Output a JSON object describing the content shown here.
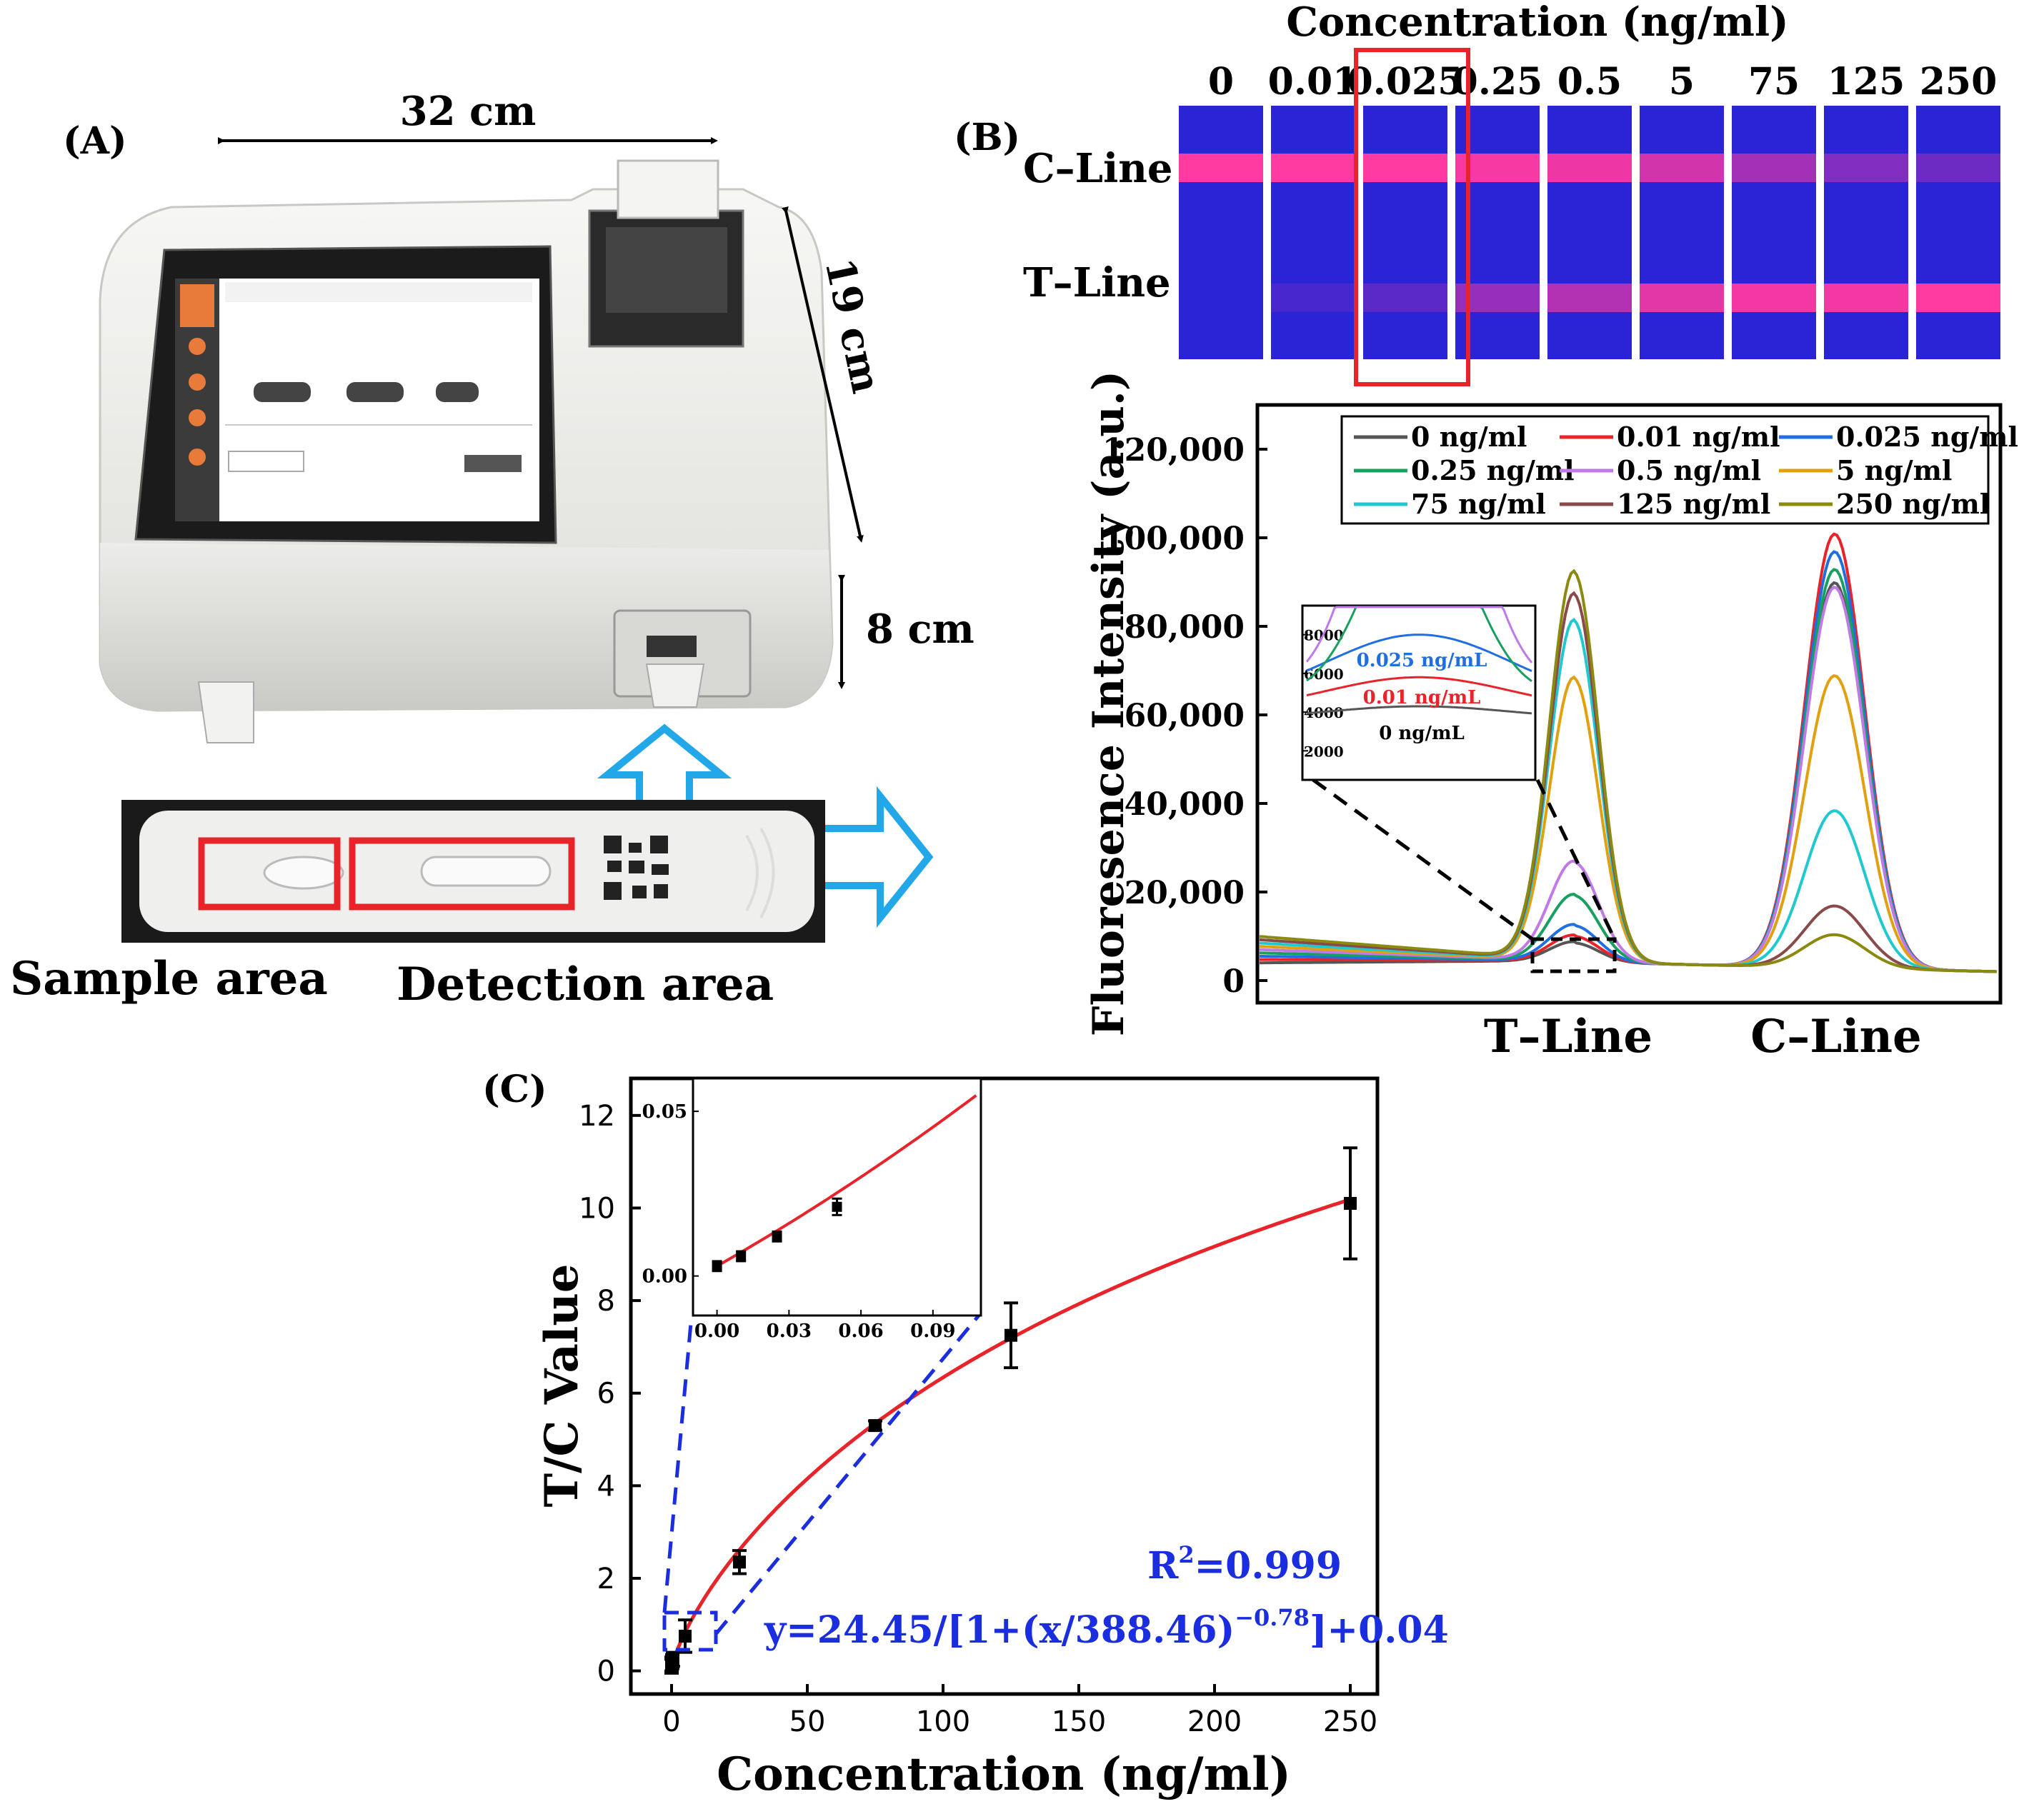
{
  "panel_a": {
    "label": "(A)",
    "dim_width": "32 cm",
    "dim_depth": "19 cm",
    "dim_height": "8 cm",
    "sample_area_label": "Sample area",
    "detection_area_label": "Detection area"
  },
  "panel_b": {
    "label": "(B)",
    "strip_header": "Concentration (ng/ml)",
    "strip_concentrations": [
      "0",
      "0.01",
      "0.025",
      "0.25",
      "0.5",
      "5",
      "75",
      "125",
      "250"
    ],
    "c_line_label": "C–Line",
    "t_line_label": "T–Line",
    "strip_c_intensity": [
      1.0,
      1.0,
      1.0,
      0.95,
      0.9,
      0.75,
      0.5,
      0.3,
      0.2
    ],
    "strip_t_intensity": [
      0.0,
      0.05,
      0.15,
      0.45,
      0.6,
      0.85,
      0.95,
      0.95,
      1.0
    ]
  },
  "panel_c": {
    "label": "(C)",
    "r2_text": "R",
    "r2_sup": "2",
    "r2_value": "=0.999",
    "eq_text": "y=24.45/[1+(x/388.46)",
    "eq_sup": "−0.78",
    "eq_tail": "]+0.04"
  },
  "colors": {
    "strip_bg": "#2a24d6",
    "strip_line": "#ff3aa0",
    "highlight": "#e8242a",
    "arrow": "#22a8e8",
    "fit_red": "#e8242a",
    "annot_blue": "#1a2ee0"
  },
  "chart_data": [
    {
      "type": "line",
      "id": "fluorescence",
      "ylabel": "Fluoresence Intensity (a.u.)",
      "x_category_labels": [
        "T–Line",
        "C–Line"
      ],
      "ylim": [
        -5000,
        130000
      ],
      "yticks": [
        0,
        20000,
        40000,
        60000,
        80000,
        100000,
        120000
      ],
      "ytick_labels": [
        "0",
        "20,000",
        "40,000",
        "60,000",
        "80,000",
        "100,000",
        "120,000"
      ],
      "legend_position": "top",
      "series": [
        {
          "name": "0 ng/ml",
          "color": "#555555",
          "t_peak": 4300,
          "c_peak": 87000
        },
        {
          "name": "0.01 ng/ml",
          "color": "#e8242a",
          "t_peak": 5800,
          "c_peak": 98000
        },
        {
          "name": "0.025 ng/ml",
          "color": "#1f6fe0",
          "t_peak": 8200,
          "c_peak": 94000
        },
        {
          "name": "0.25 ng/ml",
          "color": "#18a060",
          "t_peak": 15000,
          "c_peak": 90000
        },
        {
          "name": "0.5 ng/ml",
          "color": "#c07ae8",
          "t_peak": 22500,
          "c_peak": 86000
        },
        {
          "name": "5 ng/ml",
          "color": "#e0a010",
          "t_peak": 64000,
          "c_peak": 66000
        },
        {
          "name": "75 ng/ml",
          "color": "#20c8d0",
          "t_peak": 77000,
          "c_peak": 35500
        },
        {
          "name": "125 ng/ml",
          "color": "#8a4a4a",
          "t_peak": 83000,
          "c_peak": 14000
        },
        {
          "name": "250 ng/ml",
          "color": "#8a8a10",
          "t_peak": 88000,
          "c_peak": 7500
        }
      ],
      "inset": {
        "yticks": [
          2000,
          4000,
          6000,
          8000
        ],
        "ytick_labels": [
          "2000",
          "4000",
          "6000",
          "8000"
        ],
        "labels": [
          "0.025 ng/mL",
          "0.01 ng/mL",
          "0 ng/mL"
        ]
      }
    },
    {
      "type": "scatter",
      "id": "tc_calibration",
      "xlabel": "Concentration (ng/ml)",
      "ylabel": "T/C Value",
      "xlim": [
        -15,
        260
      ],
      "ylim": [
        -0.5,
        12.8
      ],
      "xticks": [
        0,
        50,
        100,
        150,
        200,
        250
      ],
      "yticks": [
        0,
        2,
        4,
        6,
        8,
        10,
        12
      ],
      "points": [
        {
          "x": 0,
          "y": 0.1,
          "err": 0.15
        },
        {
          "x": 0.01,
          "y": 0.12,
          "err": 0.15
        },
        {
          "x": 0.025,
          "y": 0.15,
          "err": 0.15
        },
        {
          "x": 0.25,
          "y": 0.2,
          "err": 0.15
        },
        {
          "x": 0.5,
          "y": 0.25,
          "err": 0.15
        },
        {
          "x": 5,
          "y": 0.75,
          "err": 0.35
        },
        {
          "x": 25,
          "y": 2.35,
          "err": 0.25
        },
        {
          "x": 75,
          "y": 5.3,
          "err": 0.1
        },
        {
          "x": 125,
          "y": 7.25,
          "err": 0.7
        },
        {
          "x": 250,
          "y": 10.1,
          "err": 1.2
        }
      ],
      "inset": {
        "xticks": [
          0.0,
          0.03,
          0.06,
          0.09
        ],
        "xtick_labels": [
          "0.00",
          "0.03",
          "0.06",
          "0.09"
        ],
        "yticks": [
          0.0,
          0.05
        ],
        "ytick_labels": [
          "0.00",
          "0.05"
        ],
        "points": [
          {
            "x": 0.0,
            "y": 0.003,
            "err": 0.0015
          },
          {
            "x": 0.01,
            "y": 0.006,
            "err": 0.0015
          },
          {
            "x": 0.025,
            "y": 0.012,
            "err": 0.0015
          },
          {
            "x": 0.05,
            "y": 0.021,
            "err": 0.0025
          }
        ]
      }
    }
  ]
}
